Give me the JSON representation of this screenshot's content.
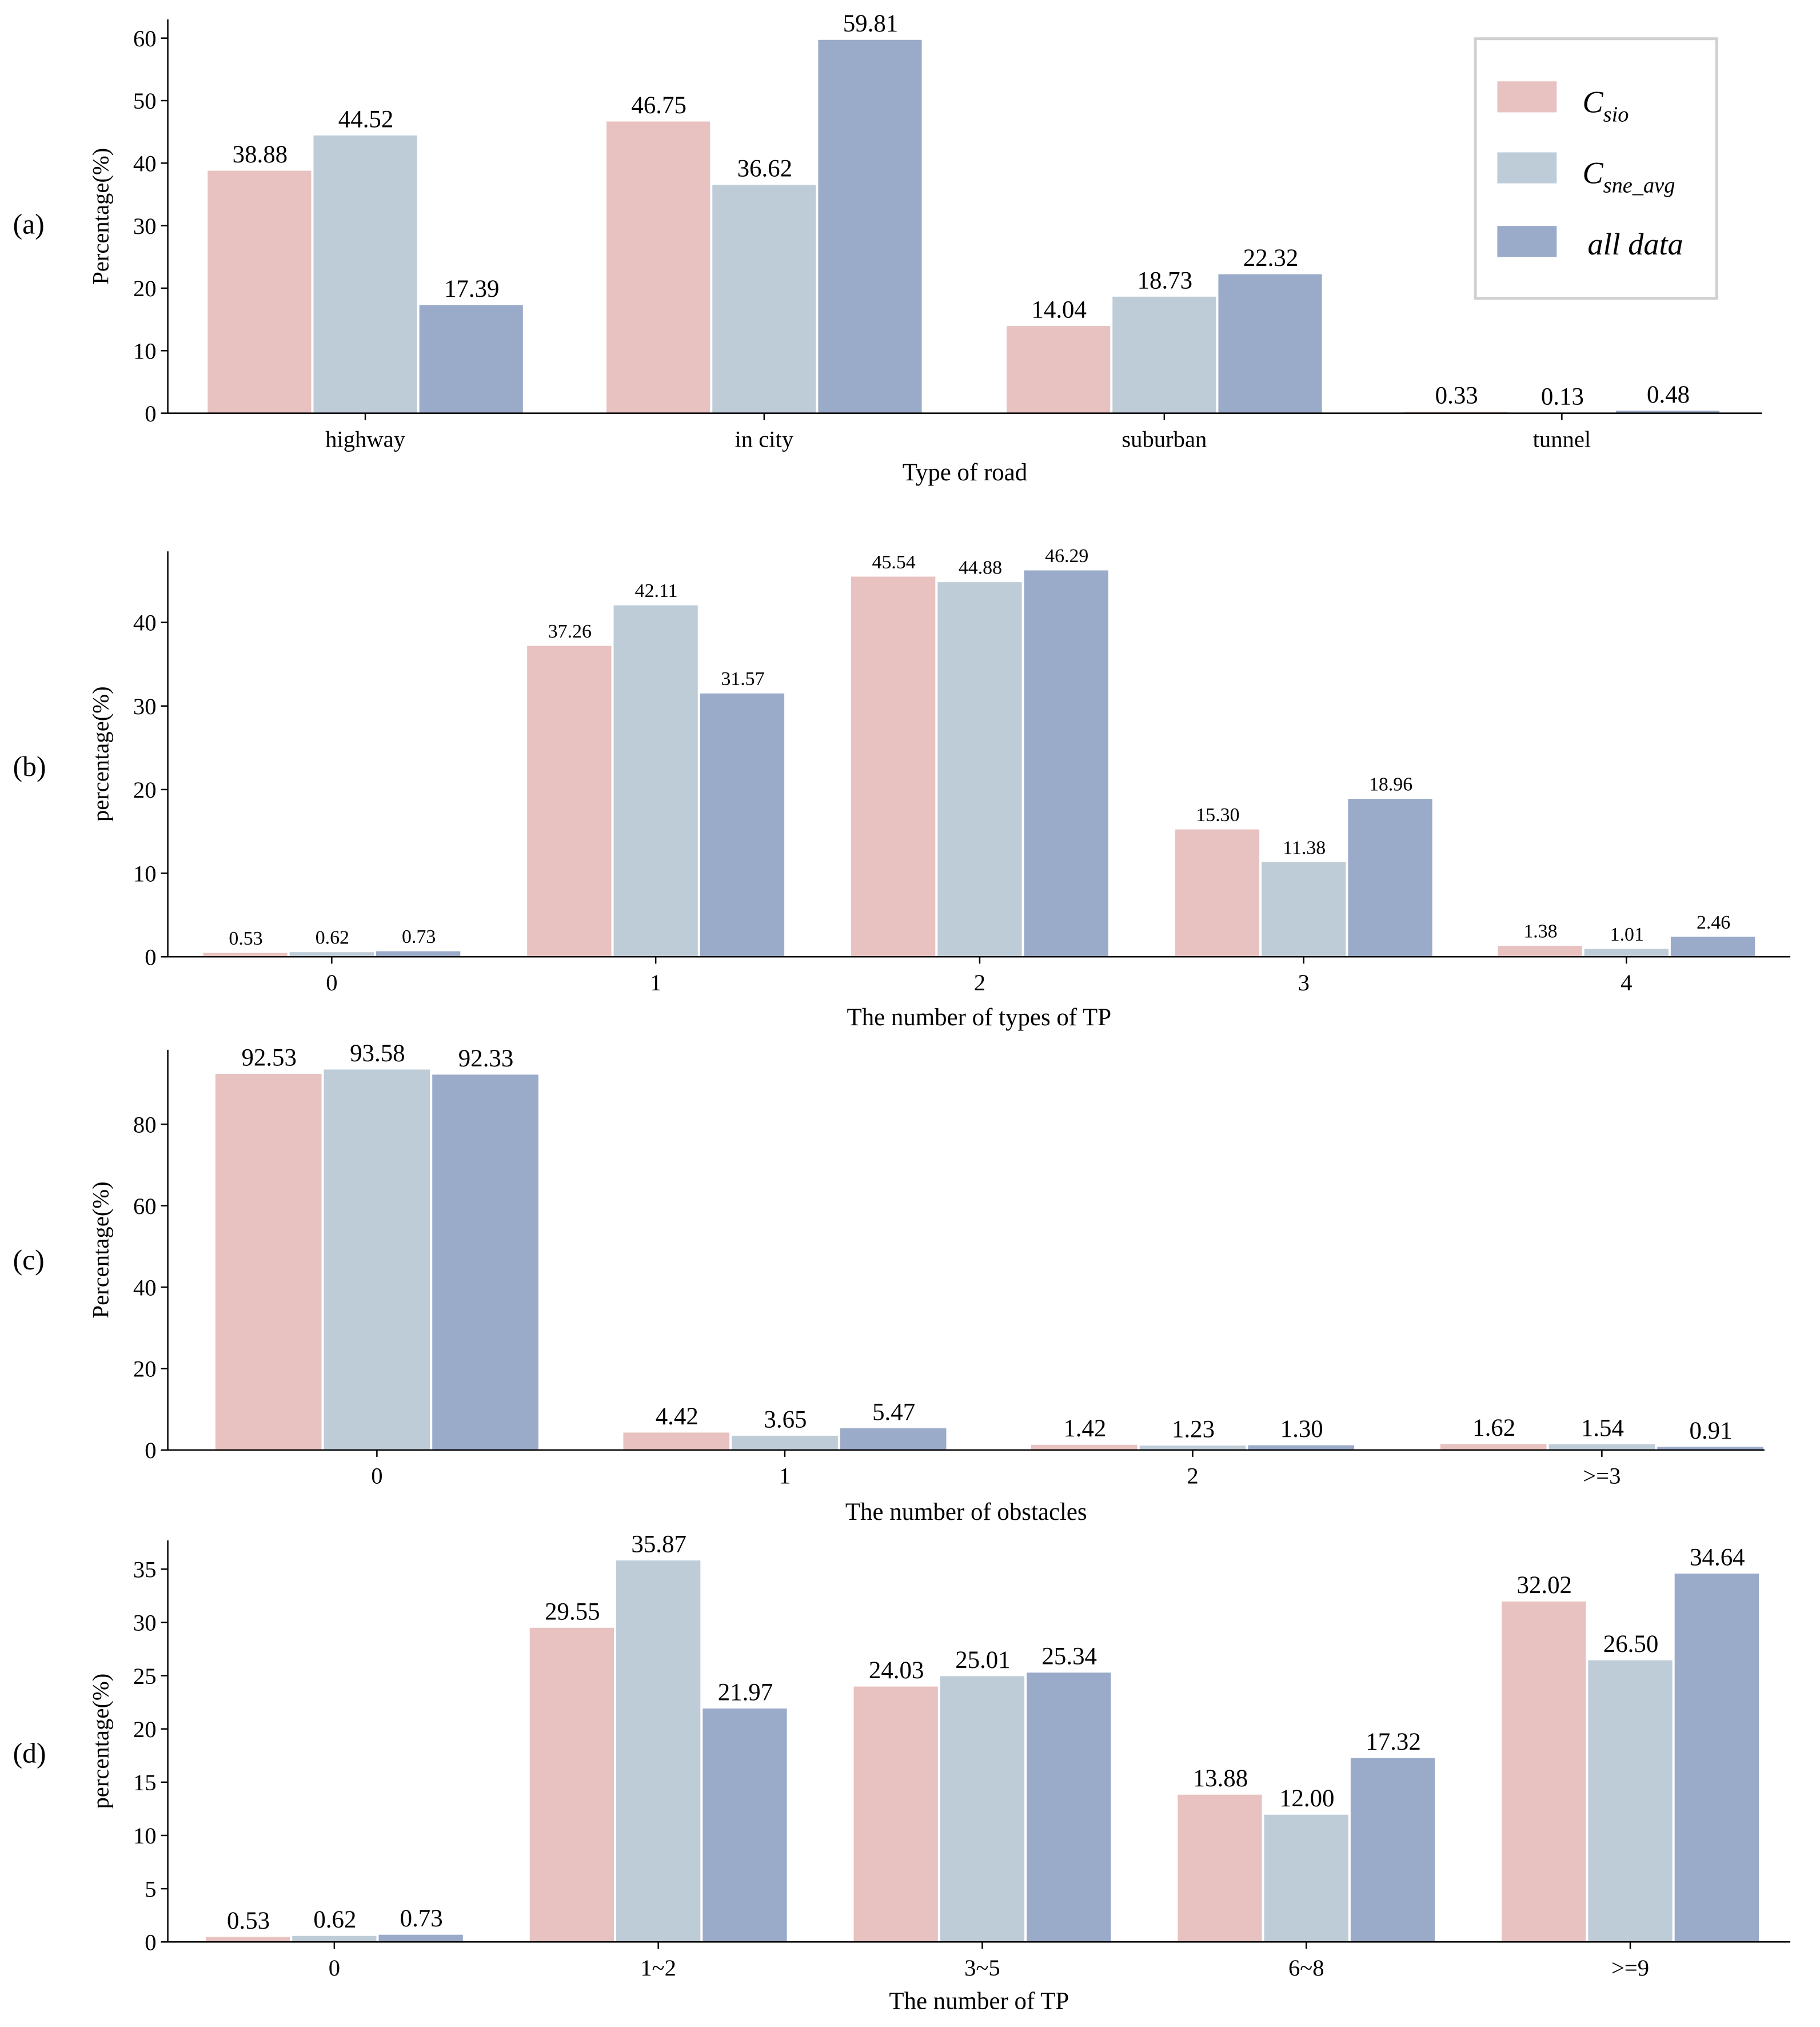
{
  "colors": {
    "C_sio": "#E8C2C0",
    "C_sne_avg": "#BECCD8",
    "all_data": "#9AAAC9"
  },
  "legend": [
    {
      "base": "C",
      "sub": "sio",
      "color": "#E8C2C0"
    },
    {
      "base": "C",
      "sub": "sne_avg",
      "color": "#BECCD8"
    },
    {
      "base": "",
      "sub": "",
      "label": "all data",
      "color": "#9AAAC9"
    }
  ],
  "chart_data": [
    {
      "panel_label": "(a)",
      "type": "bar",
      "xlabel": "Type of road",
      "ylabel": "Percentage(%)",
      "categories": [
        "highway",
        "in city",
        "suburban",
        "tunnel"
      ],
      "yticks": [
        0,
        10,
        20,
        30,
        40,
        50,
        60
      ],
      "ylim": [
        0,
        63
      ],
      "series": [
        {
          "name": "C_sio",
          "values": [
            38.88,
            46.75,
            14.04,
            0.33
          ],
          "labels": [
            "38.88",
            "46.75",
            "14.04",
            "0.33"
          ]
        },
        {
          "name": "C_sne_avg",
          "values": [
            44.52,
            36.62,
            18.73,
            0.13
          ],
          "labels": [
            "44.52",
            "36.62",
            "18.73",
            "0.13"
          ]
        },
        {
          "name": "all data",
          "values": [
            17.39,
            59.81,
            22.32,
            0.48
          ],
          "labels": [
            "17.39",
            "59.81",
            "22.32",
            "0.48"
          ]
        }
      ],
      "legend_position": "top-right"
    },
    {
      "panel_label": "(b)",
      "type": "bar",
      "xlabel": "The number of types of TP",
      "ylabel": "percentage(%)",
      "categories": [
        "0",
        "1",
        "2",
        "3",
        "4"
      ],
      "yticks": [
        0,
        10,
        20,
        30,
        40
      ],
      "ylim": [
        0,
        48.5
      ],
      "series": [
        {
          "name": "C_sio",
          "values": [
            0.53,
            37.26,
            45.54,
            15.3,
            1.38
          ],
          "labels": [
            "0.53",
            "37.26",
            "45.54",
            "15.30",
            "1.38"
          ]
        },
        {
          "name": "C_sne_avg",
          "values": [
            0.62,
            42.11,
            44.88,
            11.38,
            1.01
          ],
          "labels": [
            "0.62",
            "42.11",
            "44.88",
            "11.38",
            "1.01"
          ]
        },
        {
          "name": "all data",
          "values": [
            0.73,
            31.57,
            46.29,
            18.96,
            2.46
          ],
          "labels": [
            "0.73",
            "31.57",
            "46.29",
            "18.96",
            "2.46"
          ]
        }
      ]
    },
    {
      "panel_label": "(c)",
      "type": "bar",
      "xlabel": "The number of obstacles",
      "ylabel": "Percentage(%)",
      "categories": [
        "0",
        "1",
        "2",
        ">=3"
      ],
      "yticks": [
        0,
        20,
        40,
        60,
        80
      ],
      "ylim": [
        0,
        98.3
      ],
      "series": [
        {
          "name": "C_sio",
          "values": [
            92.53,
            4.42,
            1.42,
            1.62
          ],
          "labels": [
            "92.53",
            "4.42",
            "1.42",
            "1.62"
          ]
        },
        {
          "name": "C_sne_avg",
          "values": [
            93.58,
            3.65,
            1.23,
            1.54
          ],
          "labels": [
            "93.58",
            "3.65",
            "1.23",
            "1.54"
          ]
        },
        {
          "name": "all data",
          "values": [
            92.33,
            5.47,
            1.3,
            0.91
          ],
          "labels": [
            "92.33",
            "5.47",
            "1.30",
            "0.91"
          ]
        }
      ]
    },
    {
      "panel_label": "(d)",
      "type": "bar",
      "xlabel": "The number of TP",
      "ylabel": "percentage(%)",
      "categories": [
        "0",
        "1~2",
        "3~5",
        "6~8",
        ">=9"
      ],
      "yticks": [
        0,
        5,
        10,
        15,
        20,
        25,
        30,
        35
      ],
      "ylim": [
        0,
        37.7
      ],
      "series": [
        {
          "name": "C_sio",
          "values": [
            0.53,
            29.55,
            24.03,
            13.88,
            32.02
          ],
          "labels": [
            "0.53",
            "29.55",
            "24.03",
            "13.88",
            "32.02"
          ]
        },
        {
          "name": "C_sne_avg",
          "values": [
            0.62,
            35.87,
            25.01,
            12.0,
            26.5
          ],
          "labels": [
            "0.62",
            "35.87",
            "25.01",
            "12.00",
            "26.50"
          ]
        },
        {
          "name": "all data",
          "values": [
            0.73,
            21.97,
            25.34,
            17.32,
            34.64
          ],
          "labels": [
            "0.73",
            "21.97",
            "25.34",
            "17.32",
            "34.64"
          ]
        }
      ]
    }
  ]
}
